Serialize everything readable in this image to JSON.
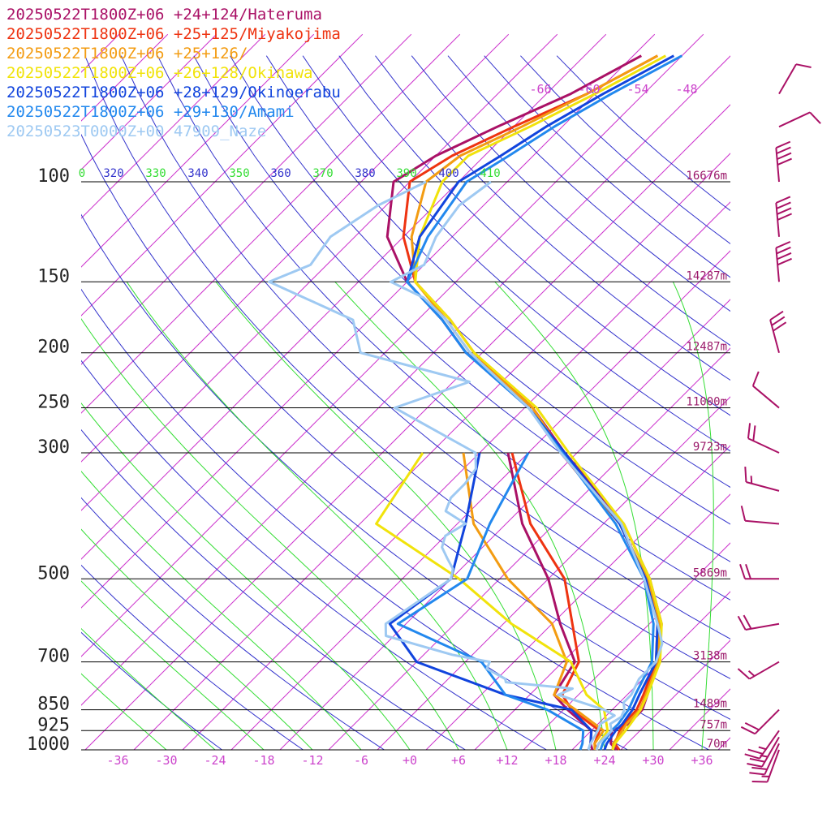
{
  "colors": {
    "isobar": "#000000",
    "isotherm": "#cc33cc",
    "dry_adiabat": "#3333cc",
    "moist_adiabat": "#33dd33",
    "wind_barb": "#aa1166"
  },
  "chart_data": {
    "type": "line",
    "title": "",
    "xlabel": "",
    "ylabel": "",
    "pressure_levels": [
      {
        "p": 100,
        "label": "100",
        "height_label": "16676m"
      },
      {
        "p": 150,
        "label": "150",
        "height_label": "14287m"
      },
      {
        "p": 200,
        "label": "200",
        "height_label": "12487m"
      },
      {
        "p": 250,
        "label": "250",
        "height_label": "11000m"
      },
      {
        "p": 300,
        "label": "300",
        "height_label": "9723m"
      },
      {
        "p": 500,
        "label": "500",
        "height_label": "5869m"
      },
      {
        "p": 700,
        "label": "700",
        "height_label": "3138m"
      },
      {
        "p": 850,
        "label": "850",
        "height_label": "1489m"
      },
      {
        "p": 925,
        "label": "925",
        "height_label": "757m"
      },
      {
        "p": 1000,
        "label": "1000",
        "height_label": "70m"
      }
    ],
    "temperature_ticks": [
      {
        "t": -36,
        "label": "-36"
      },
      {
        "t": -30,
        "label": "-30"
      },
      {
        "t": -24,
        "label": "-24"
      },
      {
        "t": -18,
        "label": "-18"
      },
      {
        "t": -12,
        "label": "-12"
      },
      {
        "t": -6,
        "label": "-6"
      },
      {
        "t": 0,
        "label": "+0"
      },
      {
        "t": 6,
        "label": "+6"
      },
      {
        "t": 12,
        "label": "+12"
      },
      {
        "t": 18,
        "label": "+18"
      },
      {
        "t": 24,
        "label": "+24"
      },
      {
        "t": 30,
        "label": "+30"
      },
      {
        "t": 36,
        "label": "+36"
      }
    ],
    "upper_temperature_labels": [
      "-66",
      "-60",
      "-54",
      "-48"
    ],
    "theta_labels": [
      "0",
      "320",
      "330",
      "340",
      "350",
      "360",
      "370",
      "380",
      "390",
      "400",
      "410"
    ],
    "series": [
      {
        "name": "20250522T1800Z+06 +24+124/Hateruma",
        "color": "#aa1166",
        "temperature": [
          [
            1000,
            25.5
          ],
          [
            975,
            24
          ],
          [
            925,
            22.5
          ],
          [
            900,
            23.8
          ],
          [
            850,
            23.7
          ],
          [
            800,
            22.5
          ],
          [
            700,
            19.8
          ],
          [
            600,
            15.5
          ],
          [
            500,
            8.5
          ],
          [
            400,
            -1.5
          ],
          [
            300,
            -17.5
          ],
          [
            250,
            -27
          ],
          [
            200,
            -42
          ],
          [
            175,
            -49
          ],
          [
            150,
            -58
          ],
          [
            125,
            -66
          ],
          [
            100,
            -72
          ],
          [
            90,
            -70
          ],
          [
            80,
            -66
          ],
          [
            70,
            -61
          ],
          [
            60,
            -57
          ]
        ],
        "dewpoint": [
          [
            1000,
            22.5
          ],
          [
            975,
            21.5
          ],
          [
            925,
            20
          ],
          [
            850,
            14.5
          ],
          [
            800,
            11
          ],
          [
            700,
            9.5
          ],
          [
            600,
            3
          ],
          [
            500,
            -4
          ],
          [
            400,
            -14
          ],
          [
            300,
            -24.5
          ]
        ]
      },
      {
        "name": "20250522T1800Z+06 +25+125/Miyakojima",
        "color": "#ee3311",
        "temperature": [
          [
            1000,
            25.8
          ],
          [
            975,
            24.5
          ],
          [
            925,
            23.5
          ],
          [
            900,
            23.2
          ],
          [
            850,
            23
          ],
          [
            800,
            22
          ],
          [
            700,
            19.5
          ],
          [
            600,
            15
          ],
          [
            500,
            8
          ],
          [
            400,
            -2
          ],
          [
            300,
            -18
          ],
          [
            250,
            -27
          ],
          [
            200,
            -41
          ],
          [
            175,
            -48
          ],
          [
            150,
            -57
          ],
          [
            125,
            -64
          ],
          [
            100,
            -70
          ],
          [
            90,
            -68
          ],
          [
            80,
            -64
          ],
          [
            70,
            -59
          ],
          [
            60,
            -55
          ]
        ],
        "dewpoint": [
          [
            1000,
            23
          ],
          [
            975,
            22
          ],
          [
            925,
            21
          ],
          [
            850,
            15
          ],
          [
            800,
            12
          ],
          [
            700,
            10
          ],
          [
            600,
            4.5
          ],
          [
            500,
            -2
          ],
          [
            400,
            -13
          ],
          [
            300,
            -24
          ]
        ]
      },
      {
        "name": "20250522T1800Z+06 +25+126/",
        "color": "#f39c12",
        "temperature": [
          [
            1000,
            25
          ],
          [
            975,
            24.3
          ],
          [
            925,
            23.8
          ],
          [
            900,
            23.5
          ],
          [
            850,
            23.4
          ],
          [
            800,
            22.3
          ],
          [
            700,
            19.8
          ],
          [
            600,
            15.2
          ],
          [
            500,
            8.2
          ],
          [
            400,
            -2
          ],
          [
            300,
            -17.8
          ],
          [
            250,
            -27
          ],
          [
            200,
            -41.5
          ],
          [
            175,
            -48.5
          ],
          [
            150,
            -57
          ],
          [
            125,
            -63
          ],
          [
            100,
            -68
          ],
          [
            90,
            -67
          ],
          [
            80,
            -63
          ],
          [
            70,
            -59
          ],
          [
            60,
            -55
          ]
        ],
        "dewpoint": [
          [
            1000,
            22.8
          ],
          [
            975,
            22
          ],
          [
            925,
            21.5
          ],
          [
            850,
            15.5
          ],
          [
            800,
            11
          ],
          [
            700,
            8.5
          ],
          [
            600,
            2
          ],
          [
            500,
            -9
          ],
          [
            400,
            -20
          ],
          [
            300,
            -30
          ]
        ]
      },
      {
        "name": "20250522T1800Z+06 +26+128/Okinawa",
        "color": "#f1e30b",
        "temperature": [
          [
            1000,
            25
          ],
          [
            975,
            24.5
          ],
          [
            925,
            24.2
          ],
          [
            900,
            24
          ],
          [
            850,
            23.5
          ],
          [
            800,
            22.5
          ],
          [
            700,
            20
          ],
          [
            600,
            15.5
          ],
          [
            500,
            8.5
          ],
          [
            400,
            -1.5
          ],
          [
            300,
            -17
          ],
          [
            250,
            -26.5
          ],
          [
            200,
            -41
          ],
          [
            175,
            -48
          ],
          [
            150,
            -57
          ],
          [
            125,
            -62
          ],
          [
            100,
            -66
          ],
          [
            90,
            -66
          ],
          [
            80,
            -62
          ],
          [
            70,
            -58
          ],
          [
            60,
            -54
          ]
        ],
        "dewpoint": [
          [
            1000,
            23
          ],
          [
            975,
            22.5
          ],
          [
            925,
            22
          ],
          [
            850,
            19
          ],
          [
            800,
            15
          ],
          [
            700,
            9
          ],
          [
            600,
            -3
          ],
          [
            500,
            -15
          ],
          [
            400,
            -32
          ],
          [
            300,
            -35
          ]
        ]
      },
      {
        "name": "20250522T1800Z+06 +28+129/Okinoerabu",
        "color": "#1144dd",
        "temperature": [
          [
            1000,
            24
          ],
          [
            975,
            23.5
          ],
          [
            925,
            23
          ],
          [
            900,
            23
          ],
          [
            850,
            22.5
          ],
          [
            800,
            21.5
          ],
          [
            700,
            19.5
          ],
          [
            600,
            15
          ],
          [
            500,
            8
          ],
          [
            400,
            -2
          ],
          [
            300,
            -17.5
          ],
          [
            250,
            -27.5
          ],
          [
            200,
            -42
          ],
          [
            175,
            -49
          ],
          [
            150,
            -58
          ],
          [
            125,
            -62
          ],
          [
            100,
            -64
          ],
          [
            90,
            -62
          ],
          [
            80,
            -60
          ],
          [
            70,
            -57
          ],
          [
            60,
            -53
          ]
        ],
        "dewpoint": [
          [
            1000,
            22
          ],
          [
            975,
            21.5
          ],
          [
            925,
            20
          ],
          [
            850,
            15
          ],
          [
            800,
            5
          ],
          [
            700,
            -10
          ],
          [
            600,
            -18
          ],
          [
            500,
            -16
          ],
          [
            400,
            -21
          ],
          [
            300,
            -28
          ]
        ]
      },
      {
        "name": "20250522T1800Z+06 +29+130/Amami",
        "color": "#2288ee",
        "temperature": [
          [
            1000,
            23.5
          ],
          [
            975,
            23
          ],
          [
            925,
            22.5
          ],
          [
            900,
            22.5
          ],
          [
            850,
            22
          ],
          [
            800,
            21
          ],
          [
            700,
            19
          ],
          [
            600,
            14.5
          ],
          [
            500,
            7.8
          ],
          [
            400,
            -2.5
          ],
          [
            300,
            -17.8
          ],
          [
            250,
            -27.5
          ],
          [
            200,
            -42
          ],
          [
            175,
            -49
          ],
          [
            150,
            -58
          ],
          [
            125,
            -61
          ],
          [
            100,
            -63
          ],
          [
            90,
            -61
          ],
          [
            80,
            -59
          ],
          [
            70,
            -56
          ],
          [
            60,
            -52
          ]
        ],
        "dewpoint": [
          [
            1000,
            21
          ],
          [
            975,
            20.5
          ],
          [
            925,
            19
          ],
          [
            850,
            12
          ],
          [
            800,
            5
          ],
          [
            700,
            -2
          ],
          [
            600,
            -17
          ],
          [
            500,
            -14
          ],
          [
            400,
            -18
          ],
          [
            300,
            -22
          ]
        ]
      },
      {
        "name": "20250523T0000Z+00 47909_Naze",
        "color": "#9ec9f2",
        "temperature": [
          [
            1000,
            23
          ],
          [
            975,
            22.5
          ],
          [
            925,
            22.5
          ],
          [
            900,
            21.5
          ],
          [
            875,
            22
          ],
          [
            850,
            21.5
          ],
          [
            825,
            20.5
          ],
          [
            800,
            20.5
          ],
          [
            750,
            19.5
          ],
          [
            700,
            19.5
          ],
          [
            650,
            18
          ],
          [
            600,
            15
          ],
          [
            500,
            7.8
          ],
          [
            400,
            -1.8
          ],
          [
            300,
            -18
          ],
          [
            250,
            -27.5
          ],
          [
            200,
            -41.5
          ],
          [
            175,
            -48.5
          ],
          [
            160,
            -54
          ],
          [
            150,
            -60
          ],
          [
            140,
            -58
          ],
          [
            125,
            -60
          ],
          [
            110,
            -61
          ],
          [
            100,
            -60
          ]
        ],
        "dewpoint": [
          [
            1000,
            22
          ],
          [
            975,
            21.5
          ],
          [
            925,
            20.8
          ],
          [
            900,
            20.3
          ],
          [
            870,
            21
          ],
          [
            850,
            19
          ],
          [
            800,
            11.5
          ],
          [
            780,
            12.5
          ],
          [
            760,
            3.5
          ],
          [
            750,
            3
          ],
          [
            720,
            -0.5
          ],
          [
            700,
            -1
          ],
          [
            680,
            -6.5
          ],
          [
            630,
            -17
          ],
          [
            600,
            -18.5
          ],
          [
            500,
            -16
          ],
          [
            480,
            -17
          ],
          [
            460,
            -19
          ],
          [
            440,
            -21
          ],
          [
            420,
            -22
          ],
          [
            400,
            -21
          ],
          [
            380,
            -25
          ],
          [
            360,
            -26
          ],
          [
            340,
            -26
          ],
          [
            320,
            -26.5
          ],
          [
            300,
            -28.5
          ],
          [
            250,
            -44
          ],
          [
            225,
            -38
          ],
          [
            200,
            -55
          ],
          [
            175,
            -60
          ],
          [
            150,
            -75
          ],
          [
            140,
            -72
          ],
          [
            125,
            -73
          ],
          [
            110,
            -71
          ],
          [
            100,
            -68
          ]
        ]
      }
    ],
    "wind_barbs": [
      {
        "p": 1000,
        "dir": 200,
        "speed": 15
      },
      {
        "p": 975,
        "dir": 205,
        "speed": 20
      },
      {
        "p": 950,
        "dir": 210,
        "speed": 25
      },
      {
        "p": 925,
        "dir": 215,
        "speed": 25
      },
      {
        "p": 850,
        "dir": 225,
        "speed": 20
      },
      {
        "p": 700,
        "dir": 240,
        "speed": 15
      },
      {
        "p": 600,
        "dir": 260,
        "speed": 20
      },
      {
        "p": 500,
        "dir": 270,
        "speed": 20
      },
      {
        "p": 400,
        "dir": 275,
        "speed": 10
      },
      {
        "p": 350,
        "dir": 285,
        "speed": 15
      },
      {
        "p": 300,
        "dir": 295,
        "speed": 20
      },
      {
        "p": 250,
        "dir": 310,
        "speed": 10
      },
      {
        "p": 200,
        "dir": 345,
        "speed": 30
      },
      {
        "p": 150,
        "dir": 355,
        "speed": 40
      },
      {
        "p": 125,
        "dir": 355,
        "speed": 40
      },
      {
        "p": 100,
        "dir": 355,
        "speed": 40
      },
      {
        "p": 80,
        "dir": 65,
        "speed": 10
      },
      {
        "p": 70,
        "dir": 30,
        "speed": 10
      }
    ],
    "ylim": [
      1000,
      60
    ],
    "xlim": [
      -40,
      40
    ],
    "grid": true,
    "legend_position": "top-left"
  }
}
